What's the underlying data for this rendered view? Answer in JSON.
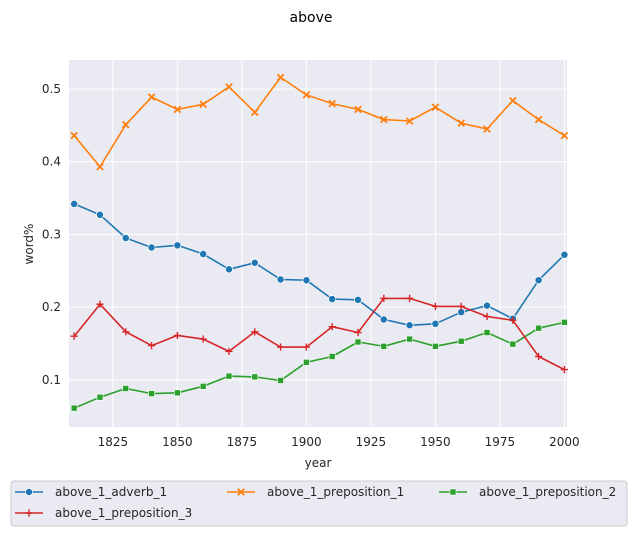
{
  "chart_data": {
    "type": "line",
    "title": "above",
    "xlabel": "year",
    "ylabel": "word%",
    "xlim": [
      1808,
      2001
    ],
    "ylim": [
      0.035,
      0.54
    ],
    "xticks": [
      1825,
      1850,
      1875,
      1900,
      1925,
      1950,
      1975,
      2000
    ],
    "yticks": [
      0.1,
      0.2,
      0.3,
      0.4,
      0.5
    ],
    "grid": true,
    "legend_position": "bottom",
    "x": [
      1810,
      1820,
      1830,
      1840,
      1850,
      1860,
      1870,
      1880,
      1890,
      1900,
      1910,
      1920,
      1930,
      1940,
      1950,
      1960,
      1970,
      1980,
      1990,
      2000
    ],
    "series": [
      {
        "name": "above_1_adverb_1",
        "color": "#1f77b4",
        "marker": "circle",
        "values": [
          0.342,
          0.327,
          0.295,
          0.282,
          0.285,
          0.273,
          0.252,
          0.261,
          0.238,
          0.237,
          0.211,
          0.21,
          0.183,
          0.175,
          0.177,
          0.193,
          0.202,
          0.184,
          0.237,
          0.272
        ]
      },
      {
        "name": "above_1_preposition_1",
        "color": "#ff7f0e",
        "marker": "x",
        "values": [
          0.436,
          0.393,
          0.451,
          0.489,
          0.472,
          0.479,
          0.503,
          0.468,
          0.516,
          0.492,
          0.48,
          0.472,
          0.458,
          0.456,
          0.475,
          0.453,
          0.445,
          0.484,
          0.458,
          0.436
        ]
      },
      {
        "name": "above_1_preposition_2",
        "color": "#2ca02c",
        "marker": "square",
        "values": [
          0.061,
          0.076,
          0.088,
          0.081,
          0.082,
          0.091,
          0.105,
          0.104,
          0.099,
          0.124,
          0.132,
          0.152,
          0.146,
          0.156,
          0.146,
          0.153,
          0.165,
          0.149,
          0.171,
          0.179
        ]
      },
      {
        "name": "above_1_preposition_3",
        "color": "#d62728",
        "marker": "plus",
        "values": [
          0.16,
          0.204,
          0.166,
          0.147,
          0.161,
          0.156,
          0.139,
          0.166,
          0.145,
          0.145,
          0.173,
          0.165,
          0.212,
          0.212,
          0.201,
          0.201,
          0.187,
          0.182,
          0.132,
          0.114
        ]
      }
    ],
    "legend_order": [
      0,
      1,
      2,
      3
    ]
  }
}
